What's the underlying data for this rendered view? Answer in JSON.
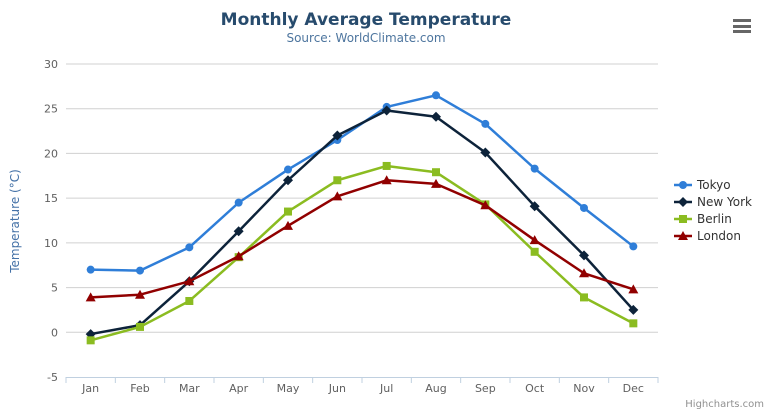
{
  "chart_data": {
    "type": "line",
    "title": "Monthly Average Temperature",
    "subtitle": "Source: WorldClimate.com",
    "xlabel": "",
    "ylabel": "Temperature (°C)",
    "categories": [
      "Jan",
      "Feb",
      "Mar",
      "Apr",
      "May",
      "Jun",
      "Jul",
      "Aug",
      "Sep",
      "Oct",
      "Nov",
      "Dec"
    ],
    "ylim": [
      -5,
      30
    ],
    "y_ticks": [
      -5,
      0,
      5,
      10,
      15,
      20,
      25,
      30
    ],
    "grid": true,
    "legend_position": "right",
    "series": [
      {
        "name": "Tokyo",
        "color": "#2f7ed8",
        "marker": "circle",
        "values": [
          7.0,
          6.9,
          9.5,
          14.5,
          18.2,
          21.5,
          25.2,
          26.5,
          23.3,
          18.3,
          13.9,
          9.6
        ]
      },
      {
        "name": "New York",
        "color": "#0d233a",
        "marker": "diamond",
        "values": [
          -0.2,
          0.8,
          5.7,
          11.3,
          17.0,
          22.0,
          24.8,
          24.1,
          20.1,
          14.1,
          8.6,
          2.5
        ]
      },
      {
        "name": "Berlin",
        "color": "#8bbc21",
        "marker": "square",
        "values": [
          -0.9,
          0.6,
          3.5,
          8.4,
          13.5,
          17.0,
          18.6,
          17.9,
          14.3,
          9.0,
          3.9,
          1.0
        ]
      },
      {
        "name": "London",
        "color": "#910000",
        "marker": "triangle",
        "values": [
          3.9,
          4.2,
          5.7,
          8.5,
          11.9,
          15.2,
          17.0,
          16.6,
          14.2,
          10.3,
          6.6,
          4.8
        ]
      }
    ],
    "styles": {
      "grid_color": "#d0d0d0",
      "axis_color": "#c0d0e0",
      "tick_label_color": "#606060"
    }
  },
  "export_menu": {
    "icon": "hamburger-menu"
  },
  "credit": {
    "label": "Highcharts.com"
  }
}
